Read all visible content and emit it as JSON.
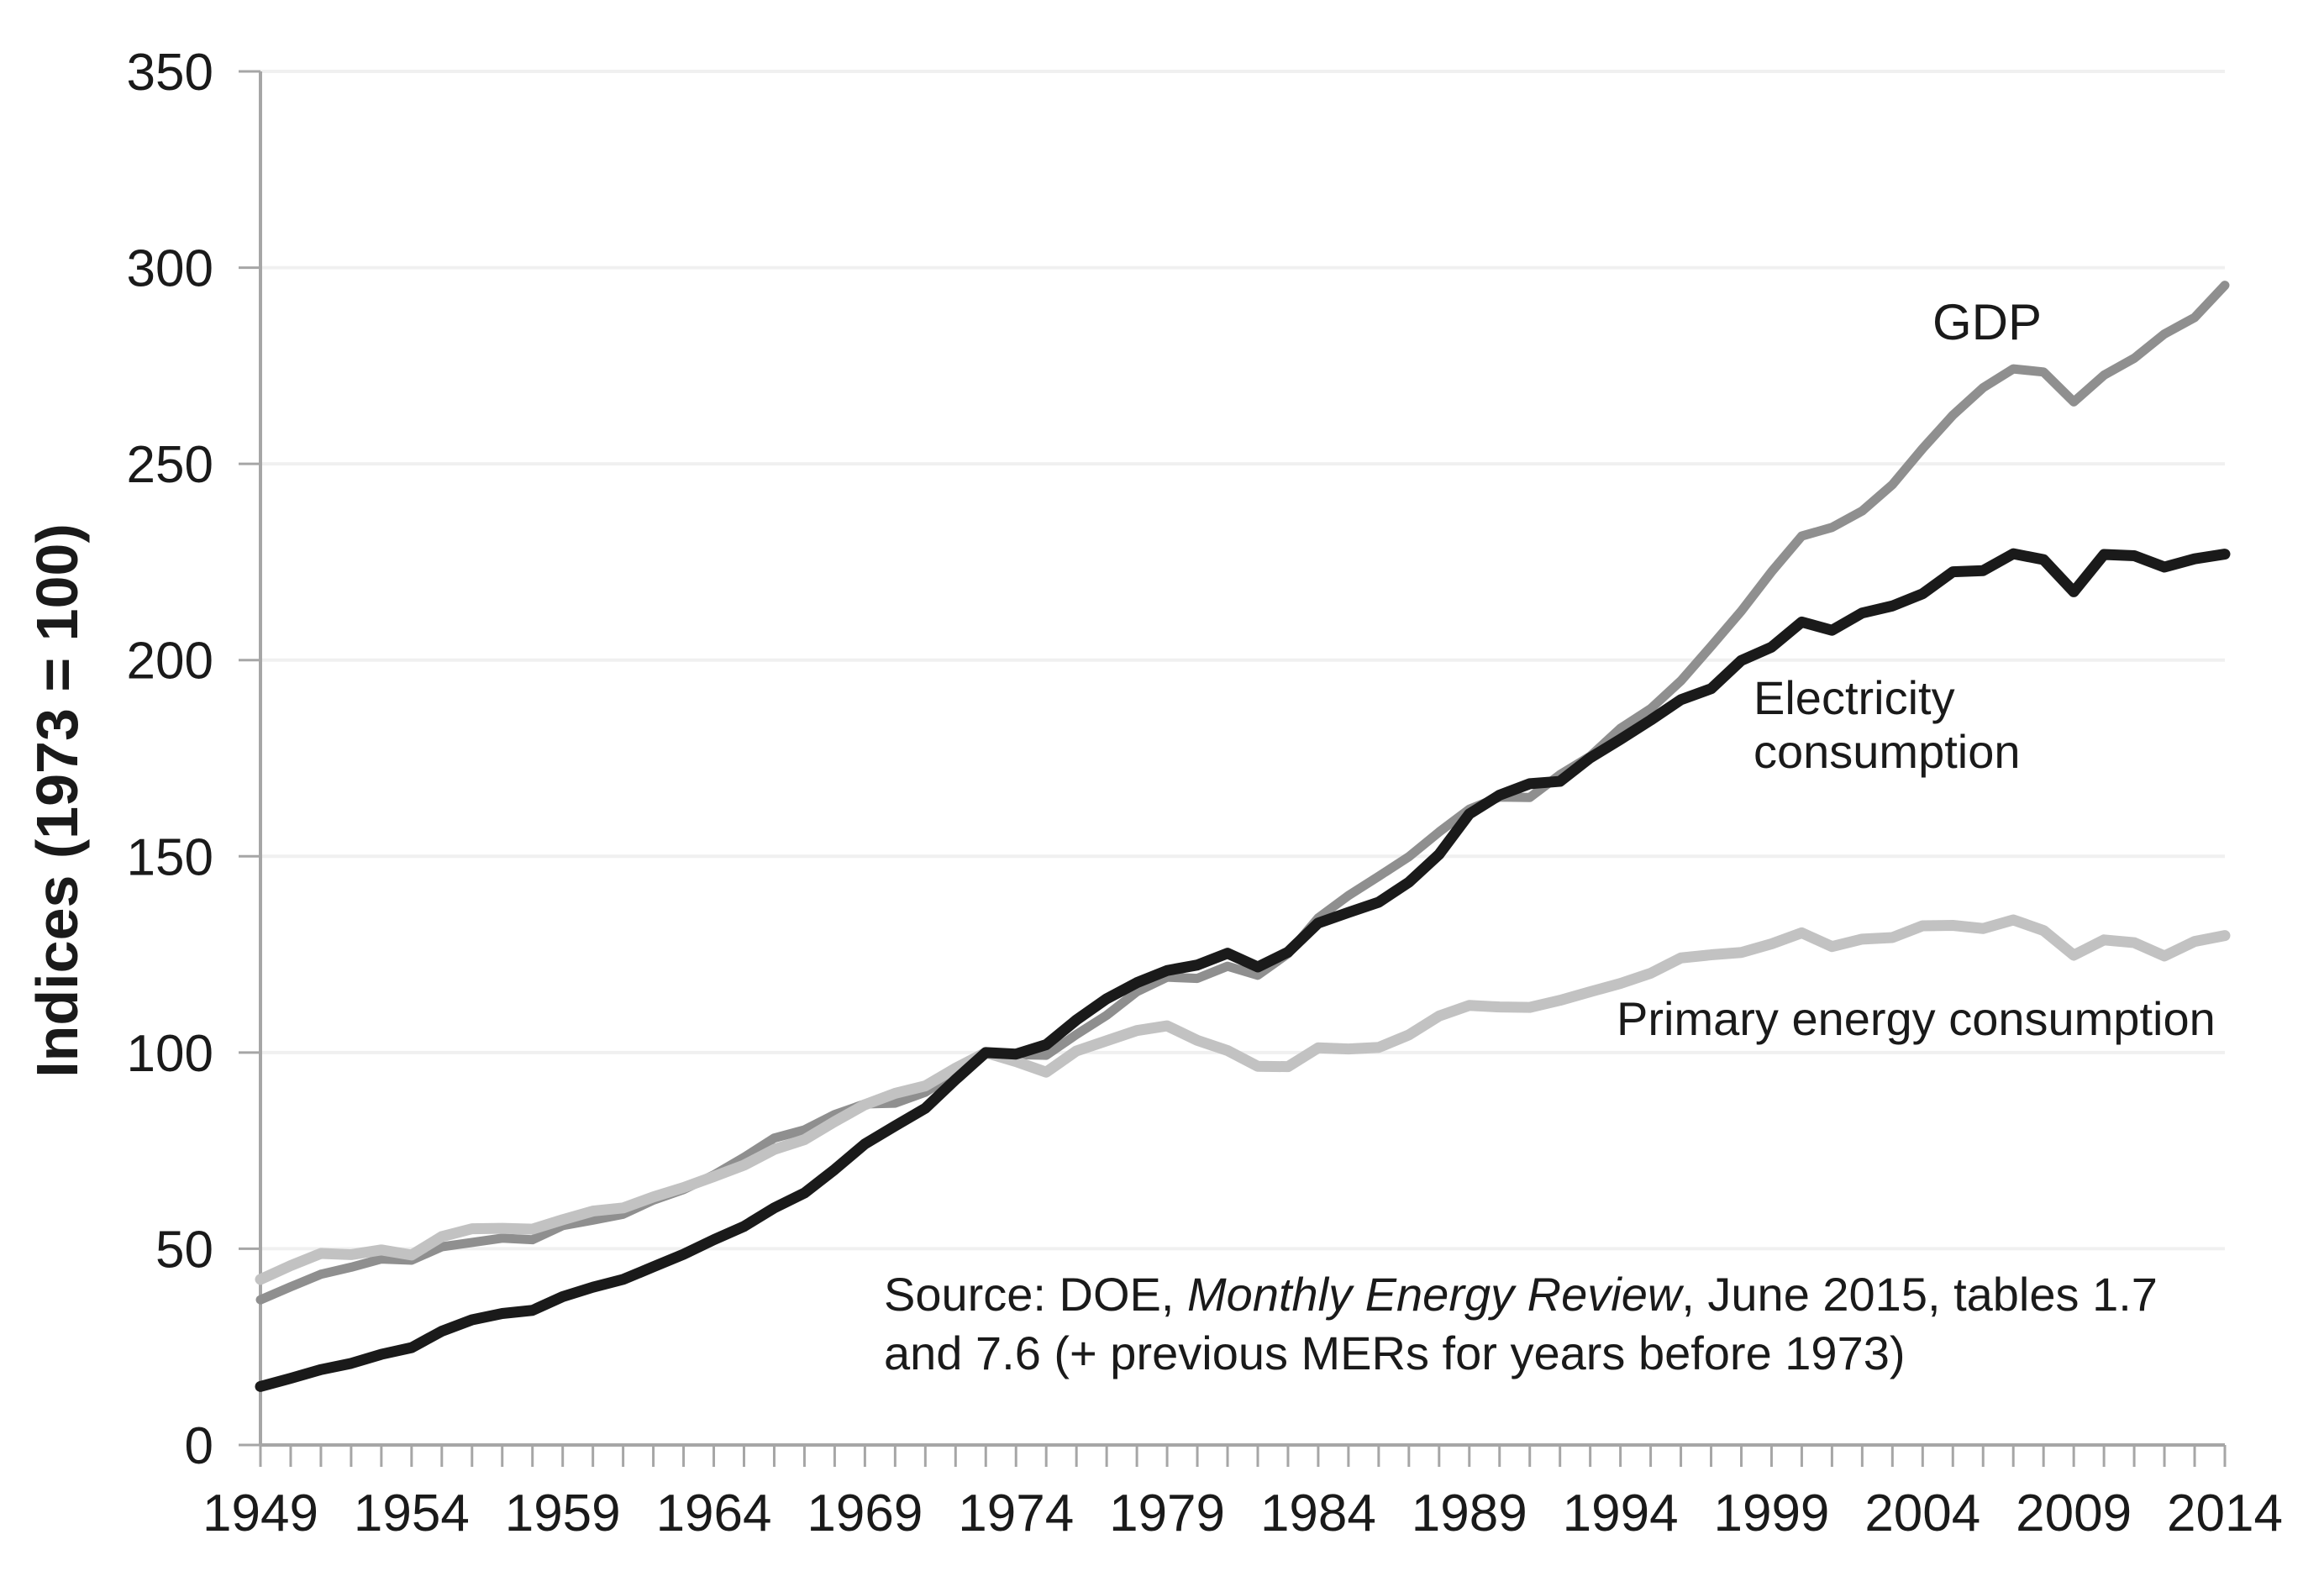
{
  "figure": {
    "y_axis_title": "Indices (1973 = 100)",
    "labels": {
      "gdp": "GDP",
      "electricity_line1": "Electricity",
      "electricity_line2": "consumption",
      "primary": "Primary energy consumption"
    },
    "source": {
      "prefix": "Source: DOE, ",
      "italic": "Monthly Energy Review",
      "suffix": ", June 2015, tables 1.7",
      "line2": "and 7.6 (+ previous MERs for years before 1973)"
    },
    "colors": {
      "gdp_line": "#8f8f8f",
      "electricity_line": "#1a1a1a",
      "primary_line": "#c2c2c2",
      "gdp_label": "#8f8f8f",
      "electricity_label": "#1a1a1a",
      "primary_label": "#bdbdbd",
      "grid": "#f0f0f0",
      "axis": "#a6a6a6",
      "text": "#1a1a1a"
    }
  },
  "chart_data": {
    "type": "line",
    "title": "",
    "xlabel": "",
    "ylabel": "Indices (1973 = 100)",
    "xlim": [
      1949,
      2014
    ],
    "ylim": [
      0,
      350
    ],
    "grid": "horizontal",
    "legend_position": "inline-annotations",
    "y_ticks": [
      0,
      50,
      100,
      150,
      200,
      250,
      300,
      350
    ],
    "x_tick_labels": [
      "1949",
      "1954",
      "1959",
      "1964",
      "1969",
      "1974",
      "1979",
      "1984",
      "1989",
      "1994",
      "1999",
      "2004",
      "2009",
      "2014"
    ],
    "x": [
      1949,
      1950,
      1951,
      1952,
      1953,
      1954,
      1955,
      1956,
      1957,
      1958,
      1959,
      1960,
      1961,
      1962,
      1963,
      1964,
      1965,
      1966,
      1967,
      1968,
      1969,
      1970,
      1971,
      1972,
      1973,
      1974,
      1975,
      1976,
      1977,
      1978,
      1979,
      1980,
      1981,
      1982,
      1983,
      1984,
      1985,
      1986,
      1987,
      1988,
      1989,
      1990,
      1991,
      1992,
      1993,
      1994,
      1995,
      1996,
      1997,
      1998,
      1999,
      2000,
      2001,
      2002,
      2003,
      2004,
      2005,
      2006,
      2007,
      2008,
      2009,
      2010,
      2011,
      2012,
      2013,
      2014
    ],
    "series": [
      {
        "id": "gdp",
        "name": "GDP",
        "color": "#8f8f8f",
        "values": [
          37.0,
          40.3,
          43.5,
          45.3,
          47.4,
          47.1,
          50.5,
          51.6,
          52.7,
          52.3,
          55.9,
          57.3,
          58.8,
          62.4,
          65.1,
          68.8,
          73.3,
          78.2,
          80.3,
          84.2,
          86.9,
          87.1,
          89.9,
          94.7,
          100.0,
          99.5,
          99.3,
          104.6,
          109.5,
          115.5,
          119.2,
          118.9,
          122.0,
          119.7,
          125.2,
          134.3,
          140.0,
          144.9,
          149.9,
          156.2,
          162.0,
          165.1,
          165.0,
          170.8,
          175.5,
          182.6,
          187.6,
          194.7,
          203.5,
          212.5,
          222.5,
          231.6,
          233.8,
          238.0,
          244.7,
          253.9,
          262.4,
          269.4,
          274.2,
          273.4,
          265.8,
          272.6,
          276.9,
          283.1,
          287.3,
          295.5
        ]
      },
      {
        "id": "primary",
        "name": "Primary energy consumption",
        "color": "#c2c2c2",
        "values": [
          42.2,
          45.7,
          48.8,
          48.5,
          49.7,
          48.4,
          53.1,
          55.1,
          55.2,
          55.0,
          57.4,
          59.6,
          60.4,
          63.2,
          65.6,
          68.4,
          71.3,
          75.3,
          77.8,
          82.4,
          86.7,
          89.6,
          91.5,
          96.0,
          100.0,
          97.7,
          95.0,
          100.4,
          103.0,
          105.6,
          106.8,
          103.1,
          100.5,
          96.5,
          96.4,
          101.2,
          100.9,
          101.3,
          104.5,
          109.3,
          112.0,
          111.6,
          111.5,
          113.3,
          115.5,
          117.6,
          120.2,
          124.1,
          124.9,
          125.5,
          127.7,
          130.5,
          127.0,
          128.9,
          129.3,
          132.3,
          132.4,
          131.6,
          133.8,
          131.1,
          124.8,
          128.7,
          128.0,
          124.6,
          128.3,
          129.8
        ]
      },
      {
        "id": "electricity",
        "name": "Electricity consumption",
        "color": "#1a1a1a",
        "values": [
          14.9,
          17.0,
          19.2,
          20.8,
          23.1,
          24.8,
          29.0,
          31.9,
          33.5,
          34.3,
          37.8,
          40.2,
          42.2,
          45.4,
          48.6,
          52.3,
          55.7,
          60.4,
          64.2,
          70.2,
          76.7,
          81.3,
          85.8,
          93.1,
          100.0,
          99.6,
          102.0,
          108.3,
          113.7,
          117.8,
          120.9,
          122.3,
          125.3,
          121.8,
          125.6,
          133.0,
          135.7,
          138.3,
          143.4,
          150.5,
          160.8,
          165.6,
          168.5,
          169.1,
          175.1,
          179.8,
          184.7,
          189.9,
          192.7,
          199.9,
          203.3,
          209.7,
          207.6,
          212.0,
          213.8,
          216.9,
          222.5,
          222.8,
          227.1,
          225.6,
          217.4,
          226.9,
          226.6,
          223.7,
          225.8,
          227.0
        ]
      }
    ]
  }
}
